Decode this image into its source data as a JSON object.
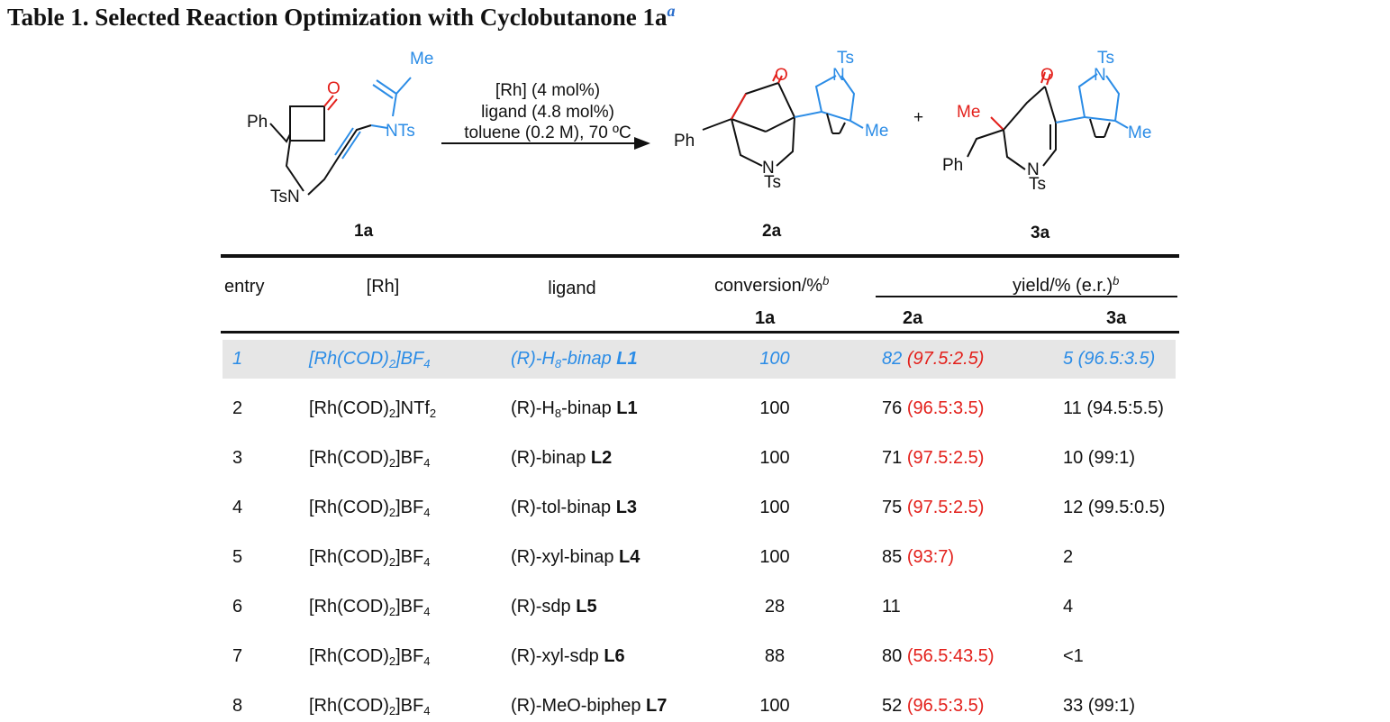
{
  "caption": {
    "text": "Table 1. Selected Reaction Optimization with Cyclobutanone 1a",
    "footnote": "a"
  },
  "scheme": {
    "conditions": [
      "[Rh] (4 mol%)",
      "ligand (4.8 mol%)",
      "toluene (0.2 M), 70 ºC"
    ],
    "compounds": [
      "1a",
      "2a",
      "3a"
    ],
    "plus": "+",
    "atom_labels": {
      "ph": "Ph",
      "me": "Me",
      "ts": "Ts",
      "ntsa": "NTs",
      "tsn": "TsN",
      "n": "N",
      "o": "O"
    }
  },
  "table": {
    "headers": {
      "entry": "entry",
      "rh": "[Rh]",
      "ligand": "ligand",
      "conversion": "conversion/%",
      "conversion_note": "b",
      "yield": "yield/% (e.r.)",
      "yield_note": "b",
      "sub_conv": "1a",
      "sub_2a": "2a",
      "sub_3a": "3a"
    },
    "rows": [
      {
        "entry": "1",
        "rh_main": "[Rh(COD)",
        "rh_sub": "2",
        "rh_end": "]BF",
        "rh_end_sub": "4",
        "lig_pre": "(R)-H",
        "lig_sub": "8",
        "lig_post": "-binap ",
        "lig_bold": "L1",
        "conv": "100",
        "y2": "82 ",
        "er2": "(97.5:2.5)",
        "y3": "5 (96.5:3.5)"
      },
      {
        "entry": "2",
        "rh_main": "[Rh(COD)",
        "rh_sub": "2",
        "rh_end": "]NTf",
        "rh_end_sub": "2",
        "lig_pre": "(R)-H",
        "lig_sub": "8",
        "lig_post": "-binap ",
        "lig_bold": "L1",
        "conv": "100",
        "y2": "76 ",
        "er2": "(96.5:3.5)",
        "y3": "11 (94.5:5.5)"
      },
      {
        "entry": "3",
        "rh_main": "[Rh(COD)",
        "rh_sub": "2",
        "rh_end": "]BF",
        "rh_end_sub": "4",
        "lig_pre": "(R)-binap ",
        "lig_sub": "",
        "lig_post": "",
        "lig_bold": "L2",
        "conv": "100",
        "y2": "71 ",
        "er2": "(97.5:2.5)",
        "y3": "10 (99:1)"
      },
      {
        "entry": "4",
        "rh_main": "[Rh(COD)",
        "rh_sub": "2",
        "rh_end": "]BF",
        "rh_end_sub": "4",
        "lig_pre": "(R)-tol-binap ",
        "lig_sub": "",
        "lig_post": "",
        "lig_bold": "L3",
        "conv": "100",
        "y2": "75 ",
        "er2": "(97.5:2.5)",
        "y3": "12 (99.5:0.5)"
      },
      {
        "entry": "5",
        "rh_main": "[Rh(COD)",
        "rh_sub": "2",
        "rh_end": "]BF",
        "rh_end_sub": "4",
        "lig_pre": "(R)-xyl-binap ",
        "lig_sub": "",
        "lig_post": "",
        "lig_bold": "L4",
        "conv": "100",
        "y2": "85 ",
        "er2": "(93:7)",
        "y3": "2"
      },
      {
        "entry": "6",
        "rh_main": "[Rh(COD)",
        "rh_sub": "2",
        "rh_end": "]BF",
        "rh_end_sub": "4",
        "lig_pre": "(R)-sdp ",
        "lig_sub": "",
        "lig_post": "",
        "lig_bold": "L5",
        "conv": "28",
        "y2": "11",
        "er2": "",
        "y3": "4"
      },
      {
        "entry": "7",
        "rh_main": "[Rh(COD)",
        "rh_sub": "2",
        "rh_end": "]BF",
        "rh_end_sub": "4",
        "lig_pre": "(R)-xyl-sdp ",
        "lig_sub": "",
        "lig_post": "",
        "lig_bold": "L6",
        "conv": "88",
        "y2": "80 ",
        "er2": "(56.5:43.5)",
        "y3": "<1"
      },
      {
        "entry": "8",
        "rh_main": "[Rh(COD)",
        "rh_sub": "2",
        "rh_end": "]BF",
        "rh_end_sub": "4",
        "lig_pre": "(R)-MeO-biphep ",
        "lig_sub": "",
        "lig_post": "",
        "lig_bold": "L7",
        "conv": "100",
        "y2": "52 ",
        "er2": "(96.5:3.5)",
        "y3": "33 (99:1)"
      }
    ]
  },
  "colors": {
    "highlight": "#2b8ce6",
    "er": "#e3201b",
    "oxygen": "#e3201b",
    "bond_blue": "#2b8ce6",
    "row_bg": "#e6e6e6"
  }
}
